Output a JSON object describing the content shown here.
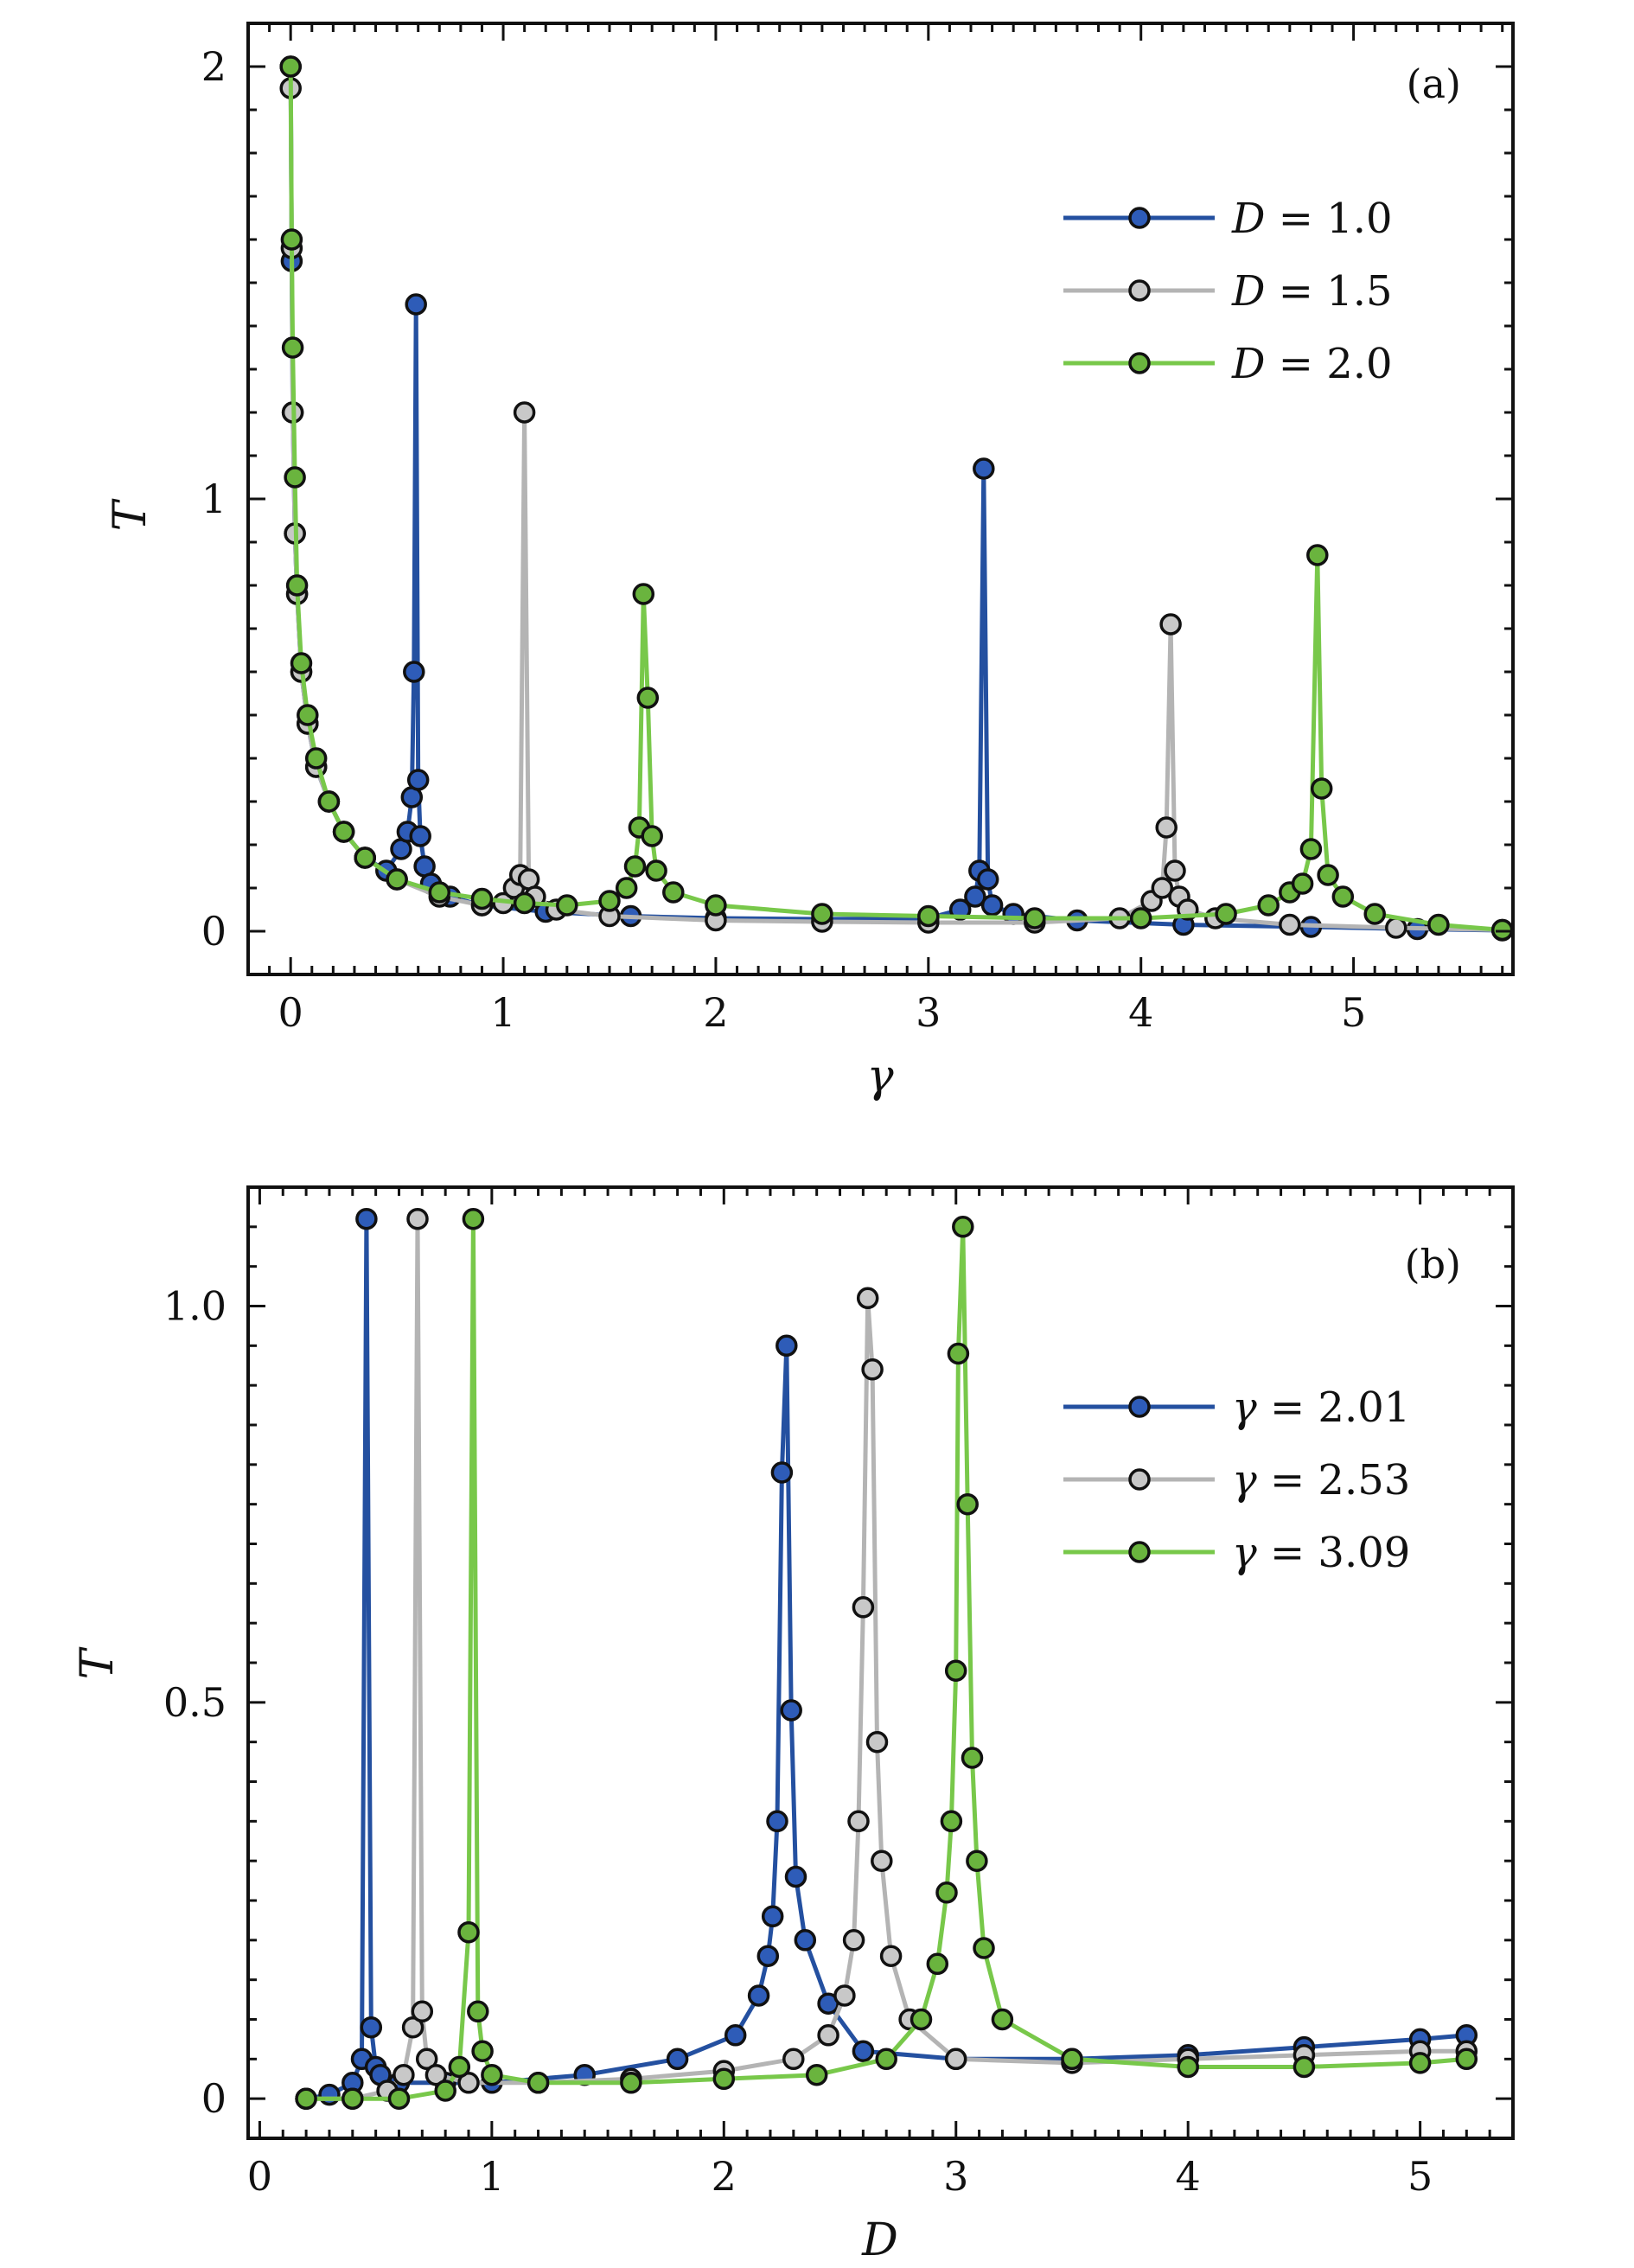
{
  "chart_data": [
    {
      "type": "line",
      "panel_label": "(a)",
      "xlabel": "γ",
      "ylabel": "T",
      "xlim": [
        -0.2,
        5.75
      ],
      "ylim": [
        -0.1,
        2.1
      ],
      "xticks": [
        0,
        1,
        2,
        3,
        4,
        5
      ],
      "xtick_labels": [
        "0",
        "1",
        "2",
        "3",
        "4",
        "5"
      ],
      "yticks": [
        0,
        1,
        2
      ],
      "ytick_labels": [
        "0",
        "1",
        "2"
      ],
      "legend_position": "top-right",
      "series": [
        {
          "name": "D = 1.0",
          "legend_var": "D",
          "legend_value": "= 1.0",
          "color": "#2450a0",
          "marker_color": "#2e5cb8",
          "x": [
            0.0,
            0.005,
            0.01,
            0.02,
            0.03,
            0.05,
            0.08,
            0.12,
            0.18,
            0.25,
            0.35,
            0.45,
            0.52,
            0.55,
            0.57,
            0.58,
            0.59,
            0.6,
            0.61,
            0.63,
            0.66,
            0.75,
            0.9,
            1.2,
            1.6,
            2.0,
            2.5,
            3.0,
            3.15,
            3.22,
            3.24,
            3.26,
            3.28,
            3.3,
            3.4,
            3.7,
            4.2,
            4.8,
            5.3,
            5.7
          ],
          "y": [
            2.0,
            1.55,
            1.2,
            0.92,
            0.78,
            0.6,
            0.48,
            0.38,
            0.3,
            0.23,
            0.17,
            0.14,
            0.19,
            0.23,
            0.31,
            0.6,
            1.45,
            0.35,
            0.22,
            0.15,
            0.11,
            0.08,
            0.06,
            0.045,
            0.035,
            0.03,
            0.028,
            0.03,
            0.05,
            0.08,
            0.14,
            1.07,
            0.12,
            0.06,
            0.04,
            0.025,
            0.015,
            0.01,
            0.005,
            0.002
          ]
        },
        {
          "name": "D = 1.5",
          "legend_var": "D",
          "legend_value": "= 1.5",
          "color": "#b4b4b4",
          "marker_color": "#c8c8c8",
          "x": [
            0.0,
            0.005,
            0.01,
            0.02,
            0.03,
            0.05,
            0.08,
            0.12,
            0.18,
            0.25,
            0.35,
            0.5,
            0.7,
            0.9,
            1.0,
            1.05,
            1.08,
            1.1,
            1.12,
            1.15,
            1.25,
            1.5,
            2.0,
            2.5,
            3.0,
            3.5,
            3.9,
            4.05,
            4.1,
            4.12,
            4.14,
            4.16,
            4.18,
            4.22,
            4.35,
            4.7,
            5.2,
            5.7
          ],
          "y": [
            1.95,
            1.58,
            1.2,
            0.92,
            0.78,
            0.6,
            0.48,
            0.38,
            0.3,
            0.23,
            0.17,
            0.12,
            0.08,
            0.06,
            0.065,
            0.1,
            0.13,
            1.2,
            0.12,
            0.08,
            0.05,
            0.035,
            0.025,
            0.022,
            0.02,
            0.02,
            0.03,
            0.07,
            0.1,
            0.24,
            0.71,
            0.14,
            0.08,
            0.05,
            0.03,
            0.015,
            0.008,
            0.003
          ]
        },
        {
          "name": "D = 2.0",
          "legend_var": "D",
          "legend_value": "= 2.0",
          "color": "#78c84a",
          "marker_color": "#6ab43e",
          "x": [
            0.0,
            0.005,
            0.01,
            0.02,
            0.03,
            0.05,
            0.08,
            0.12,
            0.18,
            0.25,
            0.35,
            0.5,
            0.7,
            0.9,
            1.1,
            1.3,
            1.5,
            1.58,
            1.62,
            1.64,
            1.66,
            1.68,
            1.7,
            1.72,
            1.8,
            2.0,
            2.5,
            3.0,
            3.5,
            4.0,
            4.4,
            4.6,
            4.7,
            4.76,
            4.8,
            4.83,
            4.85,
            4.88,
            4.95,
            5.1,
            5.4,
            5.7
          ],
          "y": [
            2.0,
            1.6,
            1.35,
            1.05,
            0.8,
            0.62,
            0.5,
            0.4,
            0.3,
            0.23,
            0.17,
            0.12,
            0.09,
            0.075,
            0.065,
            0.06,
            0.07,
            0.1,
            0.15,
            0.24,
            0.78,
            0.54,
            0.22,
            0.14,
            0.09,
            0.06,
            0.04,
            0.035,
            0.03,
            0.03,
            0.04,
            0.06,
            0.09,
            0.11,
            0.19,
            0.87,
            0.33,
            0.13,
            0.08,
            0.04,
            0.015,
            0.003
          ]
        }
      ]
    },
    {
      "type": "line",
      "panel_label": "(b)",
      "xlabel": "D",
      "ylabel": "T",
      "xlim": [
        -0.05,
        5.4
      ],
      "ylim": [
        -0.05,
        1.15
      ],
      "xticks": [
        0,
        1,
        2,
        3,
        4,
        5
      ],
      "xtick_labels": [
        "0",
        "1",
        "2",
        "3",
        "4",
        "5"
      ],
      "yticks": [
        0,
        0.5,
        1.0
      ],
      "ytick_labels": [
        "0",
        "0.5",
        "1.0"
      ],
      "legend_position": "top-right",
      "series": [
        {
          "name": "γ = 2.01",
          "legend_var": "γ",
          "legend_value": "= 2.01",
          "color": "#2450a0",
          "marker_color": "#2e5cb8",
          "x": [
            0.2,
            0.3,
            0.4,
            0.44,
            0.46,
            0.48,
            0.5,
            0.52,
            0.6,
            0.8,
            1.0,
            1.4,
            1.8,
            2.05,
            2.15,
            2.19,
            2.21,
            2.23,
            2.25,
            2.27,
            2.29,
            2.31,
            2.35,
            2.45,
            2.6,
            3.0,
            3.5,
            4.0,
            4.5,
            5.0,
            5.2
          ],
          "y": [
            0.0,
            0.005,
            0.02,
            0.05,
            1.11,
            0.09,
            0.04,
            0.03,
            0.02,
            0.02,
            0.02,
            0.03,
            0.05,
            0.08,
            0.13,
            0.18,
            0.23,
            0.35,
            0.79,
            0.95,
            0.49,
            0.28,
            0.2,
            0.12,
            0.06,
            0.05,
            0.05,
            0.055,
            0.065,
            0.075,
            0.08
          ]
        },
        {
          "name": "γ = 2.53",
          "legend_var": "γ",
          "legend_value": "= 2.53",
          "color": "#b4b4b4",
          "marker_color": "#c8c8c8",
          "x": [
            0.2,
            0.4,
            0.55,
            0.62,
            0.66,
            0.68,
            0.7,
            0.72,
            0.76,
            0.9,
            1.2,
            1.6,
            2.0,
            2.3,
            2.45,
            2.52,
            2.56,
            2.58,
            2.6,
            2.62,
            2.64,
            2.66,
            2.68,
            2.72,
            2.8,
            3.0,
            3.5,
            4.0,
            4.5,
            5.0,
            5.2
          ],
          "y": [
            0.0,
            0.0,
            0.01,
            0.03,
            0.09,
            1.11,
            0.11,
            0.05,
            0.03,
            0.02,
            0.02,
            0.025,
            0.035,
            0.05,
            0.08,
            0.13,
            0.2,
            0.35,
            0.62,
            1.01,
            0.92,
            0.45,
            0.3,
            0.18,
            0.1,
            0.05,
            0.045,
            0.05,
            0.055,
            0.06,
            0.06
          ]
        },
        {
          "name": "γ = 3.09",
          "legend_var": "γ",
          "legend_value": "= 3.09",
          "color": "#78c84a",
          "marker_color": "#6ab43e",
          "x": [
            0.2,
            0.4,
            0.6,
            0.8,
            0.86,
            0.9,
            0.92,
            0.94,
            0.96,
            1.0,
            1.2,
            1.6,
            2.0,
            2.4,
            2.7,
            2.85,
            2.92,
            2.96,
            2.98,
            3.0,
            3.01,
            3.03,
            3.05,
            3.07,
            3.09,
            3.12,
            3.2,
            3.5,
            4.0,
            4.5,
            5.0,
            5.2
          ],
          "y": [
            0.0,
            0.0,
            0.0,
            0.01,
            0.04,
            0.21,
            1.11,
            0.11,
            0.06,
            0.03,
            0.02,
            0.02,
            0.025,
            0.03,
            0.05,
            0.1,
            0.17,
            0.26,
            0.35,
            0.54,
            0.94,
            1.1,
            0.75,
            0.43,
            0.3,
            0.19,
            0.1,
            0.05,
            0.04,
            0.04,
            0.045,
            0.05
          ]
        }
      ]
    }
  ]
}
